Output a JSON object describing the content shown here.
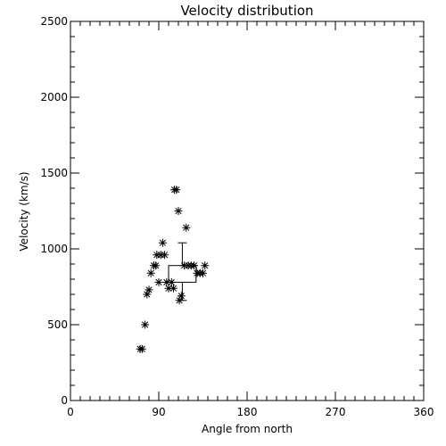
{
  "chart_data": {
    "type": "scatter",
    "title": "Velocity distribution",
    "xlabel": "Angle from north",
    "ylabel": "Velocity (km/s)",
    "xlim": [
      0,
      360
    ],
    "ylim": [
      0,
      2500
    ],
    "xticks": [
      0,
      90,
      180,
      270,
      360
    ],
    "yticks": [
      0,
      500,
      1000,
      1500,
      2000,
      2500
    ],
    "x_minor_step": 10,
    "y_minor_step": 100,
    "grid": false,
    "marker": "asterisk",
    "points": [
      {
        "x": 71,
        "y": 340
      },
      {
        "x": 73,
        "y": 340
      },
      {
        "x": 76,
        "y": 500
      },
      {
        "x": 78,
        "y": 700
      },
      {
        "x": 80,
        "y": 730
      },
      {
        "x": 82,
        "y": 840
      },
      {
        "x": 85,
        "y": 890
      },
      {
        "x": 87,
        "y": 890
      },
      {
        "x": 88,
        "y": 960
      },
      {
        "x": 92,
        "y": 960
      },
      {
        "x": 90,
        "y": 780
      },
      {
        "x": 94,
        "y": 1040
      },
      {
        "x": 96,
        "y": 960
      },
      {
        "x": 98,
        "y": 780
      },
      {
        "x": 100,
        "y": 740
      },
      {
        "x": 103,
        "y": 780
      },
      {
        "x": 105,
        "y": 740
      },
      {
        "x": 106,
        "y": 1390
      },
      {
        "x": 108,
        "y": 1390
      },
      {
        "x": 110,
        "y": 1250
      },
      {
        "x": 111,
        "y": 660
      },
      {
        "x": 113,
        "y": 690
      },
      {
        "x": 116,
        "y": 890
      },
      {
        "x": 118,
        "y": 1140
      },
      {
        "x": 120,
        "y": 890
      },
      {
        "x": 123,
        "y": 890
      },
      {
        "x": 126,
        "y": 890
      },
      {
        "x": 129,
        "y": 840
      },
      {
        "x": 132,
        "y": 840
      },
      {
        "x": 135,
        "y": 840
      },
      {
        "x": 137,
        "y": 890
      }
    ],
    "box": {
      "x_from": 100,
      "x_to": 128,
      "q1": 780,
      "q3": 890,
      "whisker_low": 660,
      "whisker_high": 1040,
      "center_x": 114
    }
  }
}
